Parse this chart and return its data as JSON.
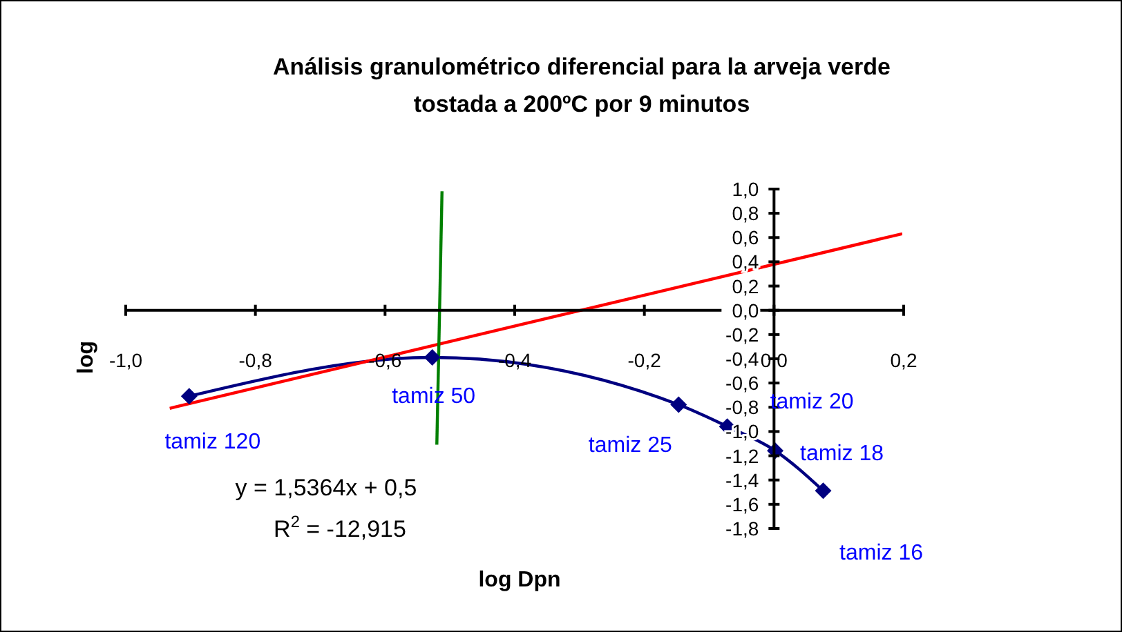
{
  "chart_data": {
    "type": "line",
    "title": "Análisis granulométrico diferencial para la arveja verde\ntostada a 200ºC por 9 minutos",
    "xlabel": "log Dpn",
    "ylabel": "log",
    "xlim": [
      -1.0,
      0.2
    ],
    "ylim": [
      -1.8,
      1.0
    ],
    "xticks": [
      {
        "value": -1.0,
        "label": "-1,0"
      },
      {
        "value": -0.8,
        "label": "-0,8"
      },
      {
        "value": -0.6,
        "label": "-0,6"
      },
      {
        "value": -0.4,
        "label": "-0,4"
      },
      {
        "value": -0.2,
        "label": "-0,2"
      },
      {
        "value": 0,
        "label": "0,0"
      },
      {
        "value": 0.2,
        "label": "0,2"
      }
    ],
    "yticks": [
      {
        "value": 1.0,
        "label": "1,0"
      },
      {
        "value": 0.8,
        "label": "0,8"
      },
      {
        "value": 0.6,
        "label": "0,6"
      },
      {
        "value": 0.4,
        "label": "0,4"
      },
      {
        "value": 0.2,
        "label": "0,2"
      },
      {
        "value": 0,
        "label": "0,0"
      },
      {
        "value": -0.2,
        "label": "-0,2"
      },
      {
        "value": -0.4,
        "label": "-0,4"
      },
      {
        "value": -0.6,
        "label": "-0,6"
      },
      {
        "value": -0.8,
        "label": "-0,8"
      },
      {
        "value": -1.0,
        "label": "-1,0"
      },
      {
        "value": -1.2,
        "label": "-1,2"
      },
      {
        "value": -1.4,
        "label": "-1,4"
      },
      {
        "value": -1.6,
        "label": "-1,6"
      },
      {
        "value": -1.8,
        "label": "-1,8"
      }
    ],
    "grid": false,
    "series": [
      {
        "color": "#000080",
        "marker": "diamond",
        "x": [
          -0.9,
          -0.525,
          -0.145,
          -0.07,
          0.004,
          0.078
        ],
        "values": [
          -0.72,
          -0.4,
          -0.79,
          -0.97,
          -1.17,
          -1.5
        ],
        "value_labels": [
          "tamiz 120",
          "tamiz 50",
          "tamiz 25",
          "tamiz 20",
          "tamiz 18",
          "tamiz 16"
        ]
      },
      {
        "color": "#ff0000",
        "marker": "none",
        "x": [
          -0.93,
          0.2
        ],
        "values": [
          -0.82,
          0.62
        ]
      },
      {
        "color": "#008000",
        "marker": "none",
        "x": [
          -0.518,
          -0.51
        ],
        "values": [
          -1.12,
          0.97
        ]
      }
    ],
    "annotations": [
      "y = 1,5364x + 0,5",
      "R$^{2}$ = -12,915"
    ]
  }
}
